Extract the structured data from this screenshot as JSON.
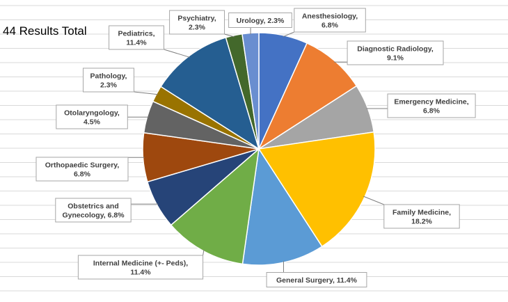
{
  "sheet": {
    "results_total": "44 Results Total"
  },
  "colors": {
    "leader_line": "#7f7f7f",
    "label_border": "#a6a6a6",
    "label_text": "#404040",
    "slice_border": "#ffffff",
    "grid_line": "#d9d9d9"
  },
  "chart_data": {
    "type": "pie",
    "title": "",
    "start_angle_deg": 0,
    "direction": "clockwise",
    "slices": [
      {
        "label": "Anesthesiology",
        "value": 6.8,
        "display": "Anesthesiology,|6.8%",
        "color": "#4472c4"
      },
      {
        "label": "Diagnostic Radiology",
        "value": 9.1,
        "display": "Diagnostic Radiology,|9.1%",
        "color": "#ed7d31"
      },
      {
        "label": "Emergency Medicine",
        "value": 6.8,
        "display": "Emergency Medicine,|6.8%",
        "color": "#a5a5a5"
      },
      {
        "label": "Family Medicine",
        "value": 18.2,
        "display": "Family Medicine,|18.2%",
        "color": "#ffc000"
      },
      {
        "label": "General Surgery",
        "value": 11.4,
        "display": "General Surgery, 11.4%",
        "color": "#5b9bd5"
      },
      {
        "label": "Internal Medicine (+- Peds)",
        "value": 11.4,
        "display": "Internal Medicine (+- Peds),|11.4%",
        "color": "#70ad47"
      },
      {
        "label": "Obstetrics and Gynecology",
        "value": 6.8,
        "display": "Obstetrics and|Gynecology, 6.8%",
        "color": "#264478"
      },
      {
        "label": "Orthopaedic Surgery",
        "value": 6.8,
        "display": "Orthopaedic Surgery,|6.8%",
        "color": "#9e480e"
      },
      {
        "label": "Otolaryngology",
        "value": 4.5,
        "display": "Otolaryngology,|4.5%",
        "color": "#636363"
      },
      {
        "label": "Pathology",
        "value": 2.3,
        "display": "Pathology,|2.3%",
        "color": "#997300"
      },
      {
        "label": "Pediatrics",
        "value": 11.4,
        "display": "Pediatrics,|11.4%",
        "color": "#255e91"
      },
      {
        "label": "Psychiatry",
        "value": 2.3,
        "display": "Psychiatry,|2.3%",
        "color": "#43682b"
      },
      {
        "label": "Urology",
        "value": 2.3,
        "display": "Urology, 2.3%",
        "color": "#698ed0"
      }
    ]
  }
}
